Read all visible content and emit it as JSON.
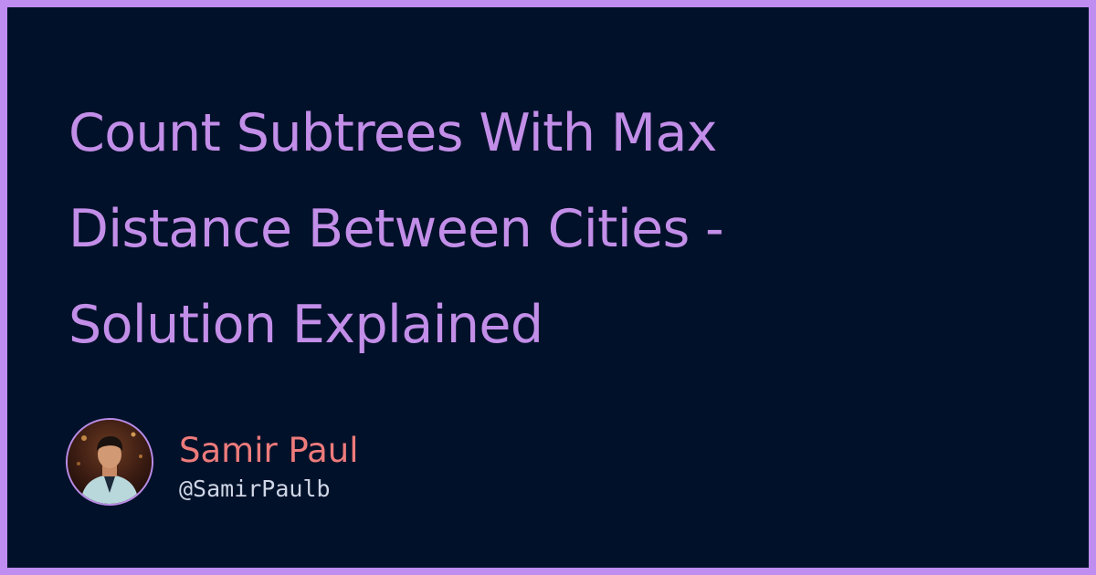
{
  "title": {
    "line1": "Count Subtrees With Max",
    "line2": "Distance Between Cities -",
    "line3": "Solution Explained"
  },
  "author": {
    "name": "Samir Paul",
    "handle": "@SamirPaulb",
    "avatar_icon": "profile-photo"
  },
  "colors": {
    "frame": "#bf8cf0",
    "background": "#02112a",
    "title": "#c28ee8",
    "name": "#ee7b7b",
    "handle": "#cfd6e6"
  }
}
